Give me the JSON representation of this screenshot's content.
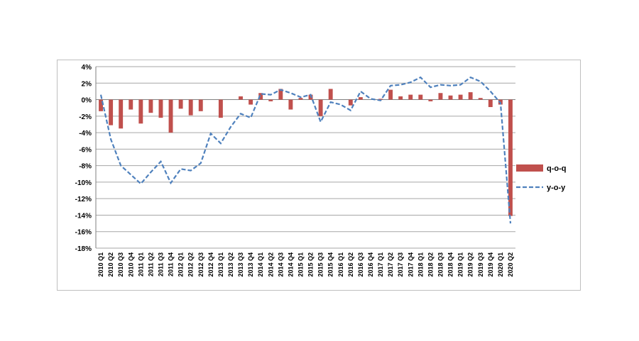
{
  "chart_data": {
    "type": "bar+line",
    "title": "",
    "xlabel": "",
    "ylabel": "",
    "ylim": [
      -18,
      4
    ],
    "yticks": [
      4,
      2,
      0,
      -2,
      -4,
      -6,
      -8,
      -10,
      -12,
      -14,
      -16,
      -18
    ],
    "ytick_labels": [
      "4%",
      "2%",
      "0%",
      "-2%",
      "-4%",
      "-6%",
      "-8%",
      "-10%",
      "-12%",
      "-14%",
      "-16%",
      "-18%"
    ],
    "grid": true,
    "legend_position": "right",
    "categories": [
      "2010 Q1",
      "2010 Q2",
      "2010 Q3",
      "2010 Q4",
      "2011 Q1",
      "2011 Q2",
      "2011 Q3",
      "2011 Q4",
      "2012 Q1",
      "2012 Q2",
      "2012 Q3",
      "2012 Q4",
      "2013 Q1",
      "2013 Q2",
      "2013 Q3",
      "2013 Q4",
      "2014 Q1",
      "2014 Q2",
      "2014 Q3",
      "2014 Q4",
      "2015 Q1",
      "2015 Q2",
      "2015 Q3",
      "2015 Q4",
      "2016 Q1",
      "2016 Q2",
      "2016 Q3",
      "2016 Q4",
      "2017 Q1",
      "2017 Q2",
      "2017 Q3",
      "2017 Q4",
      "2018 Q1",
      "2018 Q2",
      "2018 Q3",
      "2018 Q4",
      "2019 Q1",
      "2019 Q2",
      "2019 Q3",
      "2019 Q4",
      "2020 Q1",
      "2020 Q2"
    ],
    "series": [
      {
        "name": "q-o-q",
        "kind": "bar",
        "color": "#c0504d",
        "values": [
          -1.4,
          -3.1,
          -3.5,
          -1.2,
          -2.9,
          -1.6,
          -2.2,
          -4.0,
          -1.1,
          -1.9,
          -1.4,
          0.0,
          -2.2,
          0.0,
          0.4,
          -0.6,
          0.8,
          -0.2,
          1.3,
          -1.2,
          0.2,
          0.6,
          -2.0,
          1.3,
          0.0,
          -0.7,
          0.3,
          0.0,
          0.1,
          1.2,
          0.4,
          0.6,
          0.6,
          -0.2,
          0.8,
          0.5,
          0.6,
          0.9,
          0.2,
          -0.9,
          -0.6,
          -14.1
        ]
      },
      {
        "name": "y-o-y",
        "kind": "line",
        "color": "#4f81bd",
        "style": "dashed",
        "values": [
          0.6,
          -4.8,
          -8.0,
          -9.1,
          -10.2,
          -8.8,
          -7.5,
          -10.1,
          -8.4,
          -8.6,
          -7.7,
          -4.1,
          -5.3,
          -3.3,
          -1.7,
          -2.2,
          0.7,
          0.6,
          1.2,
          0.8,
          0.3,
          0.6,
          -2.7,
          -0.3,
          -0.6,
          -1.3,
          1.0,
          0.1,
          -0.1,
          1.7,
          1.8,
          2.1,
          2.7,
          1.5,
          1.8,
          1.7,
          1.8,
          2.7,
          2.2,
          1.0,
          -0.4,
          -15.0
        ]
      }
    ]
  }
}
